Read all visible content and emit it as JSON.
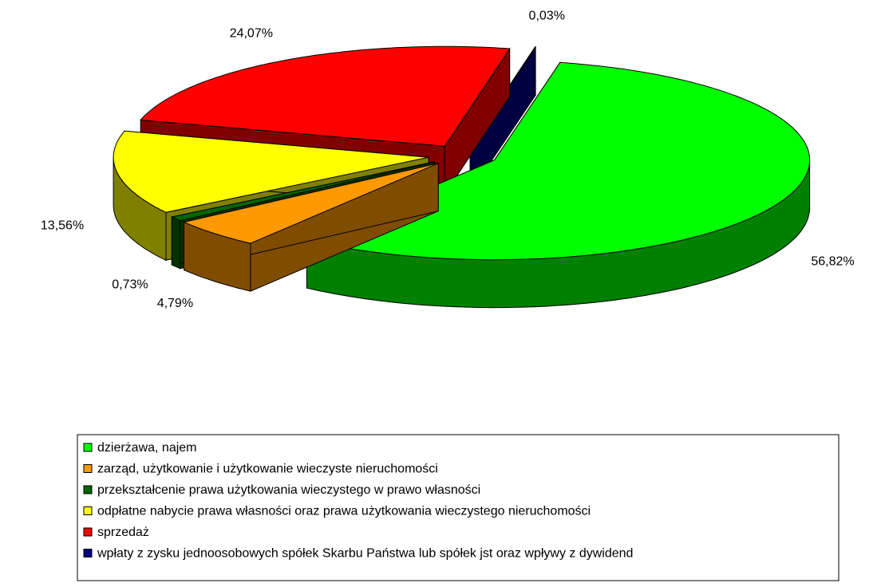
{
  "chart_data": {
    "type": "pie3d",
    "categories": [
      "dzierżawa, najem",
      "zarząd, użytkowanie i użytkowanie wieczyste nieruchomości",
      "przekształcenie prawa użytkowania wieczystego w prawo własności",
      "odpłatne nabycie prawa własności oraz prawa użytkowania wieczystego nieruchomości",
      "sprzedaż",
      "wpłaty z zysku jednoosobowych spółek Skarbu Państwa lub spółek jst oraz wpływy z dywidend"
    ],
    "values": [
      56.82,
      4.79,
      0.73,
      13.56,
      24.07,
      0.03
    ],
    "value_labels": [
      "56,82%",
      "4,79%",
      "0,73%",
      "13,56%",
      "24,07%",
      "0,03%"
    ],
    "colors": [
      "#00ff00",
      "#ff9900",
      "#006600",
      "#ffff00",
      "#ff0000",
      "#000080"
    ],
    "legend": "bottom"
  }
}
